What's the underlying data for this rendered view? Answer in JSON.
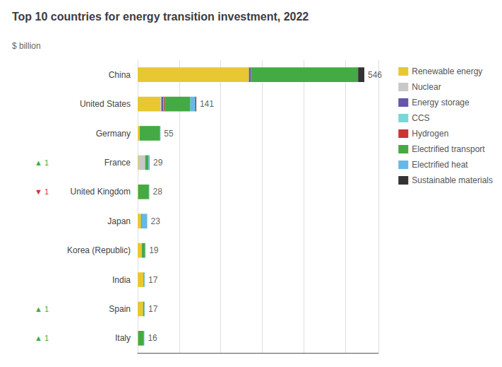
{
  "chart_data": {
    "type": "bar",
    "orientation": "horizontal",
    "stacked": true,
    "title": "Top 10 countries for energy transition investment, 2022",
    "xlabel": "$ billion",
    "categories": [
      "China",
      "United States",
      "Germany",
      "France",
      "United Kingdom",
      "Japan",
      "Korea (Republic)",
      "India",
      "Spain",
      "Italy"
    ],
    "series": [
      {
        "name": "Renewable energy",
        "color": "#e8c832",
        "values": [
          268,
          55,
          5,
          2,
          1,
          8,
          10,
          14,
          13,
          1
        ]
      },
      {
        "name": "Nuclear",
        "color": "#c8c8c8",
        "values": [
          0,
          2,
          0,
          16,
          0,
          0,
          0,
          0,
          0,
          0
        ]
      },
      {
        "name": "Energy storage",
        "color": "#6655aa",
        "values": [
          5,
          5,
          0,
          0,
          0,
          0,
          0,
          0,
          0,
          0
        ]
      },
      {
        "name": "CCS",
        "color": "#78d8d8",
        "values": [
          0,
          1,
          0,
          0,
          0,
          0,
          0,
          0,
          0,
          0
        ]
      },
      {
        "name": "Hydrogen",
        "color": "#cc3333",
        "values": [
          0,
          2,
          0,
          0,
          0,
          0,
          0,
          0,
          0,
          0
        ]
      },
      {
        "name": "Electrified transport",
        "color": "#44aa44",
        "values": [
          258,
          62,
          49,
          8,
          26,
          2,
          8,
          2,
          3,
          14
        ]
      },
      {
        "name": "Electrified heat",
        "color": "#66b8e8",
        "values": [
          0,
          12,
          1,
          3,
          1,
          13,
          1,
          1,
          1,
          1
        ]
      },
      {
        "name": "Sustainable materials",
        "color": "#333333",
        "values": [
          15,
          2,
          0,
          0,
          0,
          0,
          0,
          0,
          0,
          0
        ]
      }
    ],
    "totals": [
      546,
      141,
      55,
      29,
      28,
      23,
      19,
      17,
      17,
      16
    ],
    "annotations": [
      {
        "category": "France",
        "text": "▲ 1",
        "color": "#44aa44"
      },
      {
        "category": "United Kingdom",
        "text": "▼ 1",
        "color": "#cc3333"
      },
      {
        "category": "Spain",
        "text": "▲ 1",
        "color": "#44aa44"
      },
      {
        "category": "Italy",
        "text": "▲ 1",
        "color": "#44aa44"
      }
    ],
    "xlim": [
      0,
      580
    ],
    "xticks": [
      0,
      100,
      200,
      300,
      400,
      500
    ],
    "grid": true,
    "tick_labels": "y",
    "legend": "right"
  }
}
